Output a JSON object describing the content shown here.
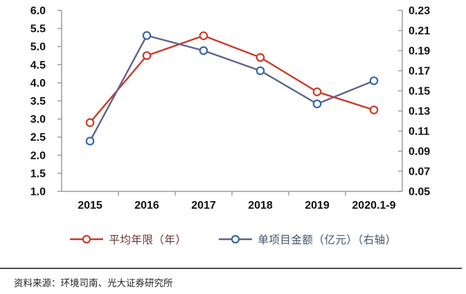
{
  "chart_data": {
    "type": "line",
    "categories": [
      "2015",
      "2016",
      "2017",
      "2018",
      "2019",
      "2020.1-9"
    ],
    "series": [
      {
        "name": "平均年限（年）",
        "axis": "left",
        "line_color": "#CB3A28",
        "marker_color": "#CB3A28",
        "label_color": "#6B3330",
        "values": [
          2.9,
          4.75,
          5.3,
          4.7,
          3.75,
          3.25
        ]
      },
      {
        "name": "单项目金额（亿元）（右轴）",
        "axis": "right",
        "line_color": "#5E6489",
        "marker_color": "#3468A4",
        "label_color": "#44546A",
        "values": [
          0.1,
          0.205,
          0.19,
          0.17,
          0.137,
          0.16
        ]
      }
    ],
    "left_axis": {
      "min": 1.0,
      "max": 6.0,
      "tick_labels": [
        "6.0",
        "5.5",
        "5.0",
        "4.5",
        "4.0",
        "3.5",
        "3.0",
        "2.5",
        "2.0",
        "1.5",
        "1.0"
      ]
    },
    "right_axis": {
      "min": 0.05,
      "max": 0.23,
      "tick_labels": [
        "0.23",
        "0.21",
        "0.19",
        "0.17",
        "0.15",
        "0.13",
        "0.11",
        "0.09",
        "0.07",
        "0.05"
      ]
    },
    "legend_position": "bottom",
    "grid": false,
    "axis_color": "#9c9c9c",
    "tick_label_color": "#111111"
  },
  "footer": {
    "source_note": "资料来源：环境司南、光大证券研究所"
  }
}
